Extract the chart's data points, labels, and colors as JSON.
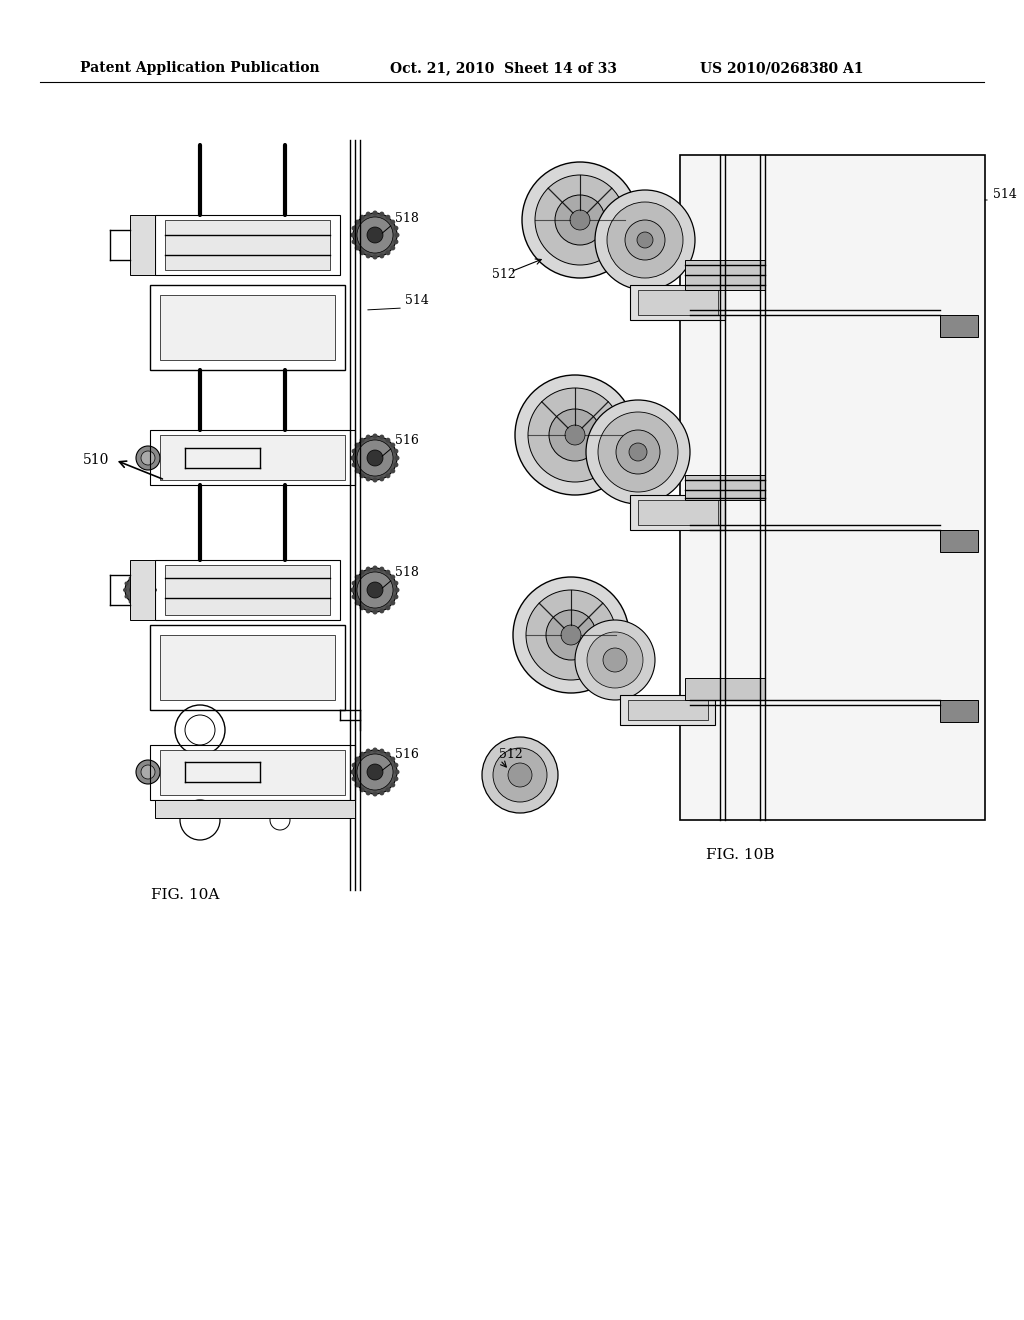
{
  "bg_color": "#ffffff",
  "header_text_left": "Patent Application Publication",
  "header_text_mid": "Oct. 21, 2010  Sheet 14 of 33",
  "header_text_right": "US 2010/0268380 A1",
  "fig_label_left": "FIG. 10A",
  "fig_label_right": "FIG. 10B",
  "label_510": "510",
  "label_514_left": "514",
  "label_516_top": "516",
  "label_518_top": "518",
  "label_518_mid": "518",
  "label_516_bot": "516",
  "label_514_right": "514",
  "label_512_top": "512",
  "label_512_bot": "512"
}
